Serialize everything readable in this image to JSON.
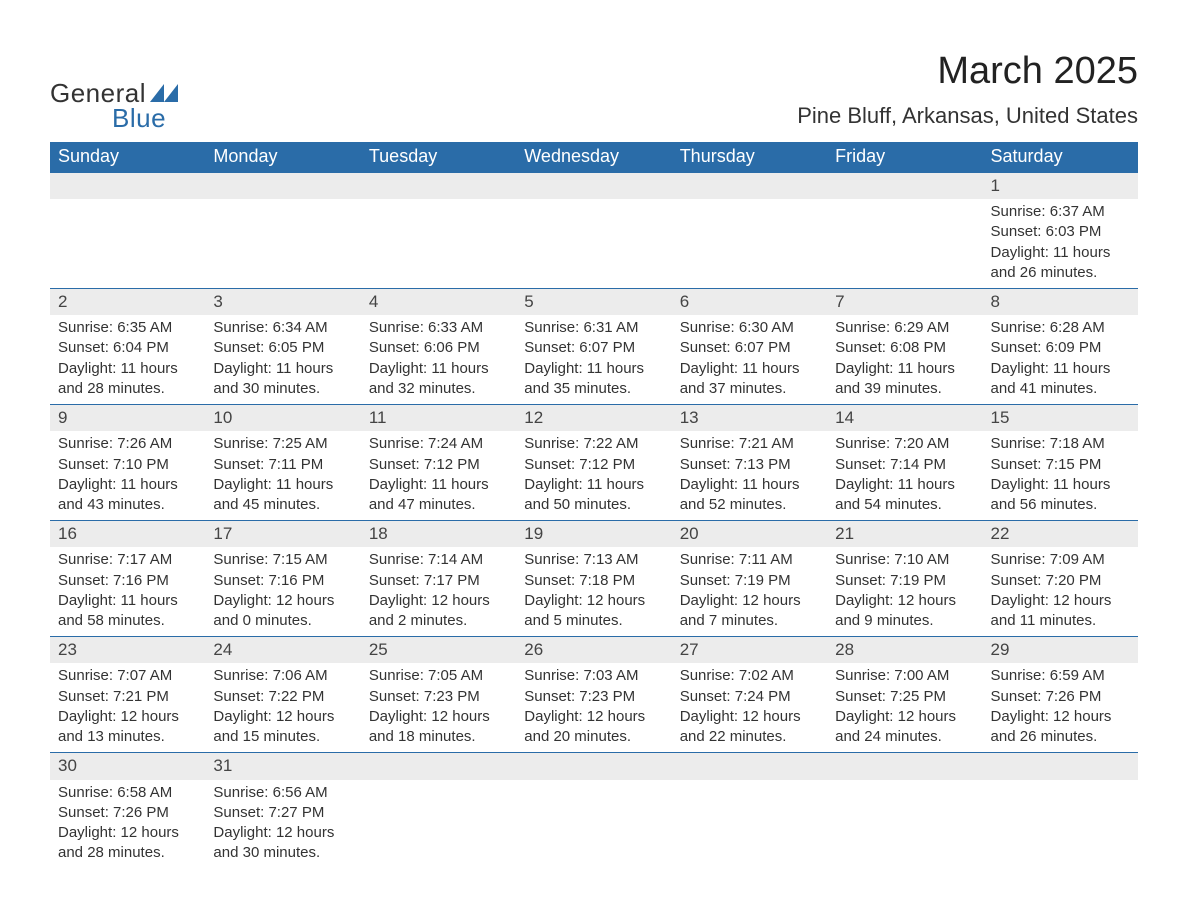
{
  "brand": {
    "word1": "General",
    "word2": "Blue",
    "logo_color": "#2a6ca8",
    "text_color": "#333333"
  },
  "header": {
    "month_title": "March 2025",
    "location": "Pine Bluff, Arkansas, United States"
  },
  "style": {
    "header_bg": "#2a6ca8",
    "header_fg": "#ffffff",
    "daynum_bg": "#ececec",
    "border_color": "#2a6ca8",
    "body_bg": "#ffffff",
    "text_color": "#333333",
    "month_fontsize": 38,
    "location_fontsize": 22,
    "dayheader_fontsize": 18,
    "daynum_fontsize": 17,
    "body_fontsize": 15
  },
  "calendar": {
    "day_headers": [
      "Sunday",
      "Monday",
      "Tuesday",
      "Wednesday",
      "Thursday",
      "Friday",
      "Saturday"
    ],
    "weeks": [
      [
        null,
        null,
        null,
        null,
        null,
        null,
        {
          "n": "1",
          "sunrise": "Sunrise: 6:37 AM",
          "sunset": "Sunset: 6:03 PM",
          "daylight": "Daylight: 11 hours and 26 minutes."
        }
      ],
      [
        {
          "n": "2",
          "sunrise": "Sunrise: 6:35 AM",
          "sunset": "Sunset: 6:04 PM",
          "daylight": "Daylight: 11 hours and 28 minutes."
        },
        {
          "n": "3",
          "sunrise": "Sunrise: 6:34 AM",
          "sunset": "Sunset: 6:05 PM",
          "daylight": "Daylight: 11 hours and 30 minutes."
        },
        {
          "n": "4",
          "sunrise": "Sunrise: 6:33 AM",
          "sunset": "Sunset: 6:06 PM",
          "daylight": "Daylight: 11 hours and 32 minutes."
        },
        {
          "n": "5",
          "sunrise": "Sunrise: 6:31 AM",
          "sunset": "Sunset: 6:07 PM",
          "daylight": "Daylight: 11 hours and 35 minutes."
        },
        {
          "n": "6",
          "sunrise": "Sunrise: 6:30 AM",
          "sunset": "Sunset: 6:07 PM",
          "daylight": "Daylight: 11 hours and 37 minutes."
        },
        {
          "n": "7",
          "sunrise": "Sunrise: 6:29 AM",
          "sunset": "Sunset: 6:08 PM",
          "daylight": "Daylight: 11 hours and 39 minutes."
        },
        {
          "n": "8",
          "sunrise": "Sunrise: 6:28 AM",
          "sunset": "Sunset: 6:09 PM",
          "daylight": "Daylight: 11 hours and 41 minutes."
        }
      ],
      [
        {
          "n": "9",
          "sunrise": "Sunrise: 7:26 AM",
          "sunset": "Sunset: 7:10 PM",
          "daylight": "Daylight: 11 hours and 43 minutes."
        },
        {
          "n": "10",
          "sunrise": "Sunrise: 7:25 AM",
          "sunset": "Sunset: 7:11 PM",
          "daylight": "Daylight: 11 hours and 45 minutes."
        },
        {
          "n": "11",
          "sunrise": "Sunrise: 7:24 AM",
          "sunset": "Sunset: 7:12 PM",
          "daylight": "Daylight: 11 hours and 47 minutes."
        },
        {
          "n": "12",
          "sunrise": "Sunrise: 7:22 AM",
          "sunset": "Sunset: 7:12 PM",
          "daylight": "Daylight: 11 hours and 50 minutes."
        },
        {
          "n": "13",
          "sunrise": "Sunrise: 7:21 AM",
          "sunset": "Sunset: 7:13 PM",
          "daylight": "Daylight: 11 hours and 52 minutes."
        },
        {
          "n": "14",
          "sunrise": "Sunrise: 7:20 AM",
          "sunset": "Sunset: 7:14 PM",
          "daylight": "Daylight: 11 hours and 54 minutes."
        },
        {
          "n": "15",
          "sunrise": "Sunrise: 7:18 AM",
          "sunset": "Sunset: 7:15 PM",
          "daylight": "Daylight: 11 hours and 56 minutes."
        }
      ],
      [
        {
          "n": "16",
          "sunrise": "Sunrise: 7:17 AM",
          "sunset": "Sunset: 7:16 PM",
          "daylight": "Daylight: 11 hours and 58 minutes."
        },
        {
          "n": "17",
          "sunrise": "Sunrise: 7:15 AM",
          "sunset": "Sunset: 7:16 PM",
          "daylight": "Daylight: 12 hours and 0 minutes."
        },
        {
          "n": "18",
          "sunrise": "Sunrise: 7:14 AM",
          "sunset": "Sunset: 7:17 PM",
          "daylight": "Daylight: 12 hours and 2 minutes."
        },
        {
          "n": "19",
          "sunrise": "Sunrise: 7:13 AM",
          "sunset": "Sunset: 7:18 PM",
          "daylight": "Daylight: 12 hours and 5 minutes."
        },
        {
          "n": "20",
          "sunrise": "Sunrise: 7:11 AM",
          "sunset": "Sunset: 7:19 PM",
          "daylight": "Daylight: 12 hours and 7 minutes."
        },
        {
          "n": "21",
          "sunrise": "Sunrise: 7:10 AM",
          "sunset": "Sunset: 7:19 PM",
          "daylight": "Daylight: 12 hours and 9 minutes."
        },
        {
          "n": "22",
          "sunrise": "Sunrise: 7:09 AM",
          "sunset": "Sunset: 7:20 PM",
          "daylight": "Daylight: 12 hours and 11 minutes."
        }
      ],
      [
        {
          "n": "23",
          "sunrise": "Sunrise: 7:07 AM",
          "sunset": "Sunset: 7:21 PM",
          "daylight": "Daylight: 12 hours and 13 minutes."
        },
        {
          "n": "24",
          "sunrise": "Sunrise: 7:06 AM",
          "sunset": "Sunset: 7:22 PM",
          "daylight": "Daylight: 12 hours and 15 minutes."
        },
        {
          "n": "25",
          "sunrise": "Sunrise: 7:05 AM",
          "sunset": "Sunset: 7:23 PM",
          "daylight": "Daylight: 12 hours and 18 minutes."
        },
        {
          "n": "26",
          "sunrise": "Sunrise: 7:03 AM",
          "sunset": "Sunset: 7:23 PM",
          "daylight": "Daylight: 12 hours and 20 minutes."
        },
        {
          "n": "27",
          "sunrise": "Sunrise: 7:02 AM",
          "sunset": "Sunset: 7:24 PM",
          "daylight": "Daylight: 12 hours and 22 minutes."
        },
        {
          "n": "28",
          "sunrise": "Sunrise: 7:00 AM",
          "sunset": "Sunset: 7:25 PM",
          "daylight": "Daylight: 12 hours and 24 minutes."
        },
        {
          "n": "29",
          "sunrise": "Sunrise: 6:59 AM",
          "sunset": "Sunset: 7:26 PM",
          "daylight": "Daylight: 12 hours and 26 minutes."
        }
      ],
      [
        {
          "n": "30",
          "sunrise": "Sunrise: 6:58 AM",
          "sunset": "Sunset: 7:26 PM",
          "daylight": "Daylight: 12 hours and 28 minutes."
        },
        {
          "n": "31",
          "sunrise": "Sunrise: 6:56 AM",
          "sunset": "Sunset: 7:27 PM",
          "daylight": "Daylight: 12 hours and 30 minutes."
        },
        null,
        null,
        null,
        null,
        null
      ]
    ]
  }
}
